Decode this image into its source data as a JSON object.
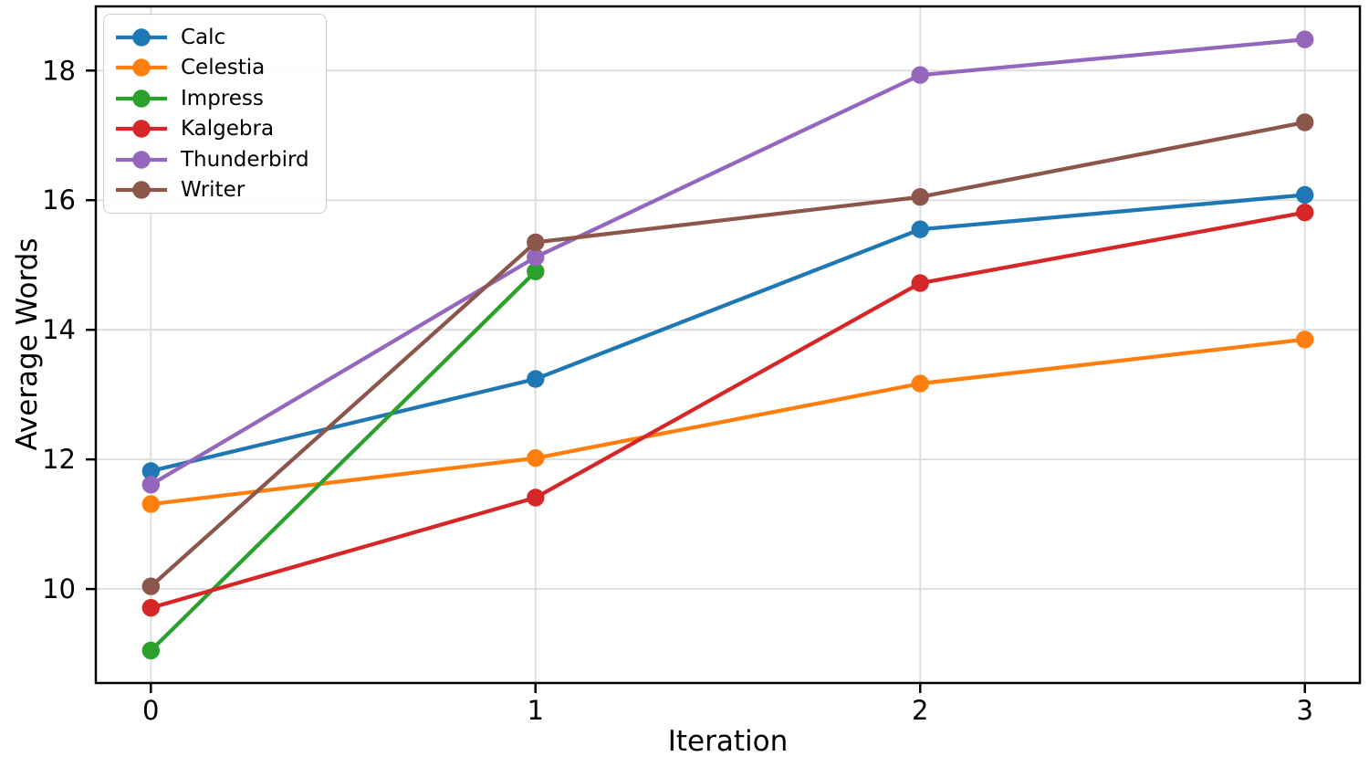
{
  "figure": {
    "background": "#ffffff",
    "axis_color": "#000000",
    "grid_color": "#dcdcdc",
    "legend_border_color": "#cccccc"
  },
  "chart_data": {
    "type": "line",
    "xlabel": "Iteration",
    "ylabel": "Average Words",
    "x": [
      0,
      1,
      2,
      3
    ],
    "xticks": [
      0,
      1,
      2,
      3
    ],
    "xtick_labels": [
      "0",
      "1",
      "2",
      "3"
    ],
    "yticks": [
      10,
      12,
      14,
      16,
      18
    ],
    "ytick_labels": [
      "10",
      "12",
      "14",
      "16",
      "18"
    ],
    "xlim": [
      -0.143,
      3.143
    ],
    "ylim": [
      8.55,
      18.99
    ],
    "grid": true,
    "legend_position": "upper-left",
    "series": [
      {
        "name": "Calc",
        "color": "#1f77b4",
        "values": [
          11.82,
          13.24,
          15.55,
          16.08
        ]
      },
      {
        "name": "Celestia",
        "color": "#ff7f0e",
        "values": [
          11.31,
          12.02,
          13.17,
          13.85
        ]
      },
      {
        "name": "Impress",
        "color": "#2ca02c",
        "values": [
          9.05,
          14.9,
          null,
          null
        ]
      },
      {
        "name": "Kalgebra",
        "color": "#d62728",
        "values": [
          9.71,
          11.41,
          14.72,
          15.81
        ]
      },
      {
        "name": "Thunderbird",
        "color": "#9467bd",
        "values": [
          11.61,
          15.12,
          17.93,
          18.48
        ]
      },
      {
        "name": "Writer",
        "color": "#8c564b",
        "values": [
          10.04,
          15.35,
          16.05,
          17.2
        ]
      }
    ]
  }
}
